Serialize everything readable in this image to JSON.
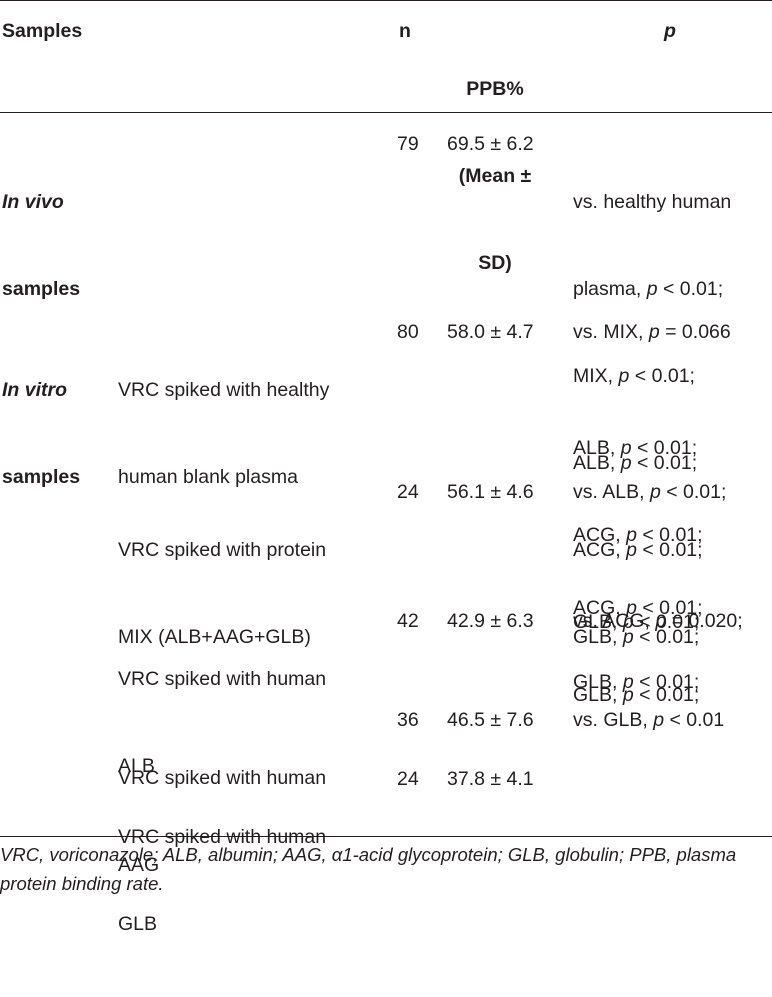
{
  "header": {
    "samples": "Samples",
    "n": "n",
    "ppb": [
      "PPB%",
      "(Mean ±",
      "SD)"
    ],
    "p": "p"
  },
  "rows": [
    {
      "group": [
        "In vivo",
        "samples"
      ],
      "n": "79",
      "ppb": "69.5 ± 6.2",
      "p_lines": [
        "vs. healthy human",
        "plasma, p < 0.01;",
        "MIX, p < 0.01;",
        "ALB, p < 0.01;",
        "ACG, p < 0.01;",
        "GLB, p < 0.01;"
      ]
    },
    {
      "group": [
        "In vitro",
        "samples"
      ],
      "desc": [
        "VRC spiked with healthy",
        "human blank plasma"
      ],
      "n": "80",
      "ppb": "58.0 ± 4.7",
      "p_first": [
        "vs. MIX, p = 0.066"
      ],
      "p_rest": [
        "ALB, p < 0.01;",
        "ACG, p < 0.01;",
        "GLB, p < 0.01;"
      ]
    },
    {
      "desc": [
        "VRC spiked with protein",
        "MIX (ALB+AAG+GLB)"
      ],
      "n": "24",
      "ppb": "56.1 ± 4.6",
      "p_first": [
        "vs. ALB, p < 0.01;"
      ],
      "p_rest": [
        "ACG, p < 0.01;",
        "GLB, p < 0.01;"
      ]
    },
    {
      "desc": [
        "VRC spiked with human",
        "ALB"
      ],
      "n": "42",
      "ppb": "42.9 ± 6.3",
      "p_first": [
        "vs. ACG, p = 0.020;"
      ],
      "p_rest": [
        "GLB, p < 0.01;"
      ]
    },
    {
      "desc": [
        "VRC spiked with human",
        "AAG"
      ],
      "n": "36",
      "ppb": "46.5 ± 7.6",
      "p_first": [
        "vs. GLB, p < 0.01"
      ]
    },
    {
      "desc": [
        "VRC spiked with human",
        "GLB"
      ],
      "n": "24",
      "ppb": "37.8 ± 4.1"
    }
  ],
  "footnote": "VRC, voriconazole; ALB, albumin; AAG, α1-acid glycoprotein; GLB, globulin; PPB, plasma protein binding rate."
}
